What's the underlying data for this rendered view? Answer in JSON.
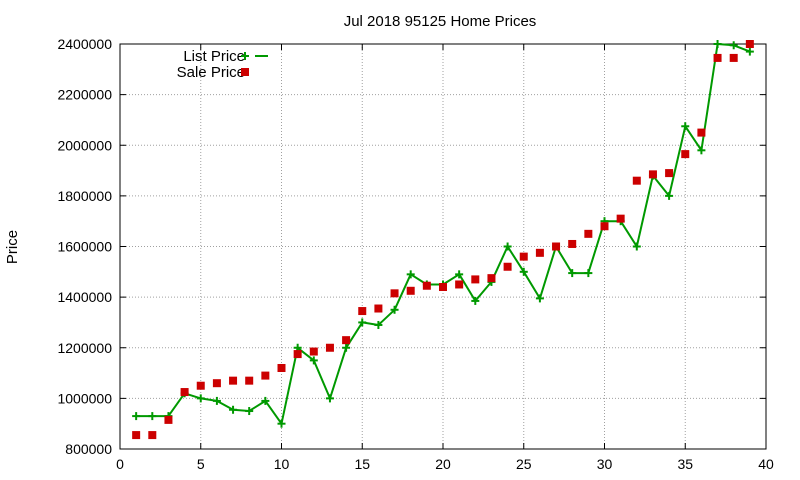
{
  "chart_data": {
    "type": "line",
    "title": "Jul 2018 95125 Home Prices",
    "xlabel": "",
    "ylabel": "Price",
    "xlim": [
      0,
      40
    ],
    "ylim": [
      800000,
      2400000
    ],
    "xticks": [
      "0",
      "5",
      "10",
      "15",
      "20",
      "25",
      "30",
      "35",
      "40"
    ],
    "yticks": [
      "800000",
      "1000000",
      "1200000",
      "1400000",
      "1600000",
      "1800000",
      "2000000",
      "2200000",
      "2400000"
    ],
    "grid": true,
    "legend_position": "top-left",
    "series": [
      {
        "name": "List Price",
        "style": "line-with-plus-markers",
        "color": "#009900",
        "x": [
          1,
          2,
          3,
          4,
          5,
          6,
          7,
          8,
          9,
          10,
          11,
          12,
          13,
          14,
          15,
          16,
          17,
          18,
          19,
          20,
          21,
          22,
          23,
          24,
          25,
          26,
          27,
          28,
          29,
          30,
          31,
          32,
          33,
          34,
          35,
          36,
          37,
          38,
          39
        ],
        "y": [
          930000,
          930000,
          930000,
          1020000,
          1000000,
          990000,
          955000,
          950000,
          990000,
          900000,
          1200000,
          1150000,
          1000000,
          1200000,
          1300000,
          1290000,
          1350000,
          1490000,
          1450000,
          1450000,
          1490000,
          1385000,
          1460000,
          1600000,
          1500000,
          1395000,
          1600000,
          1495000,
          1495000,
          1700000,
          1700000,
          1600000,
          1880000,
          1800000,
          2075000,
          1980000,
          2400000,
          2395000,
          2370000
        ]
      },
      {
        "name": "Sale Price",
        "style": "square-markers",
        "color": "#cc0000",
        "x": [
          1,
          2,
          3,
          4,
          5,
          6,
          7,
          8,
          9,
          10,
          11,
          12,
          13,
          14,
          15,
          16,
          17,
          18,
          19,
          20,
          21,
          22,
          23,
          24,
          25,
          26,
          27,
          28,
          29,
          30,
          31,
          32,
          33,
          34,
          35,
          36,
          37,
          38,
          39
        ],
        "y": [
          855000,
          855000,
          915000,
          1025000,
          1050000,
          1060000,
          1070000,
          1070000,
          1090000,
          1120000,
          1175000,
          1185000,
          1200000,
          1230000,
          1345000,
          1355000,
          1415000,
          1425000,
          1445000,
          1440000,
          1450000,
          1470000,
          1475000,
          1520000,
          1560000,
          1575000,
          1600000,
          1610000,
          1650000,
          1680000,
          1710000,
          1860000,
          1885000,
          1890000,
          1965000,
          2050000,
          2345000,
          2345000,
          2400000
        ]
      }
    ]
  }
}
